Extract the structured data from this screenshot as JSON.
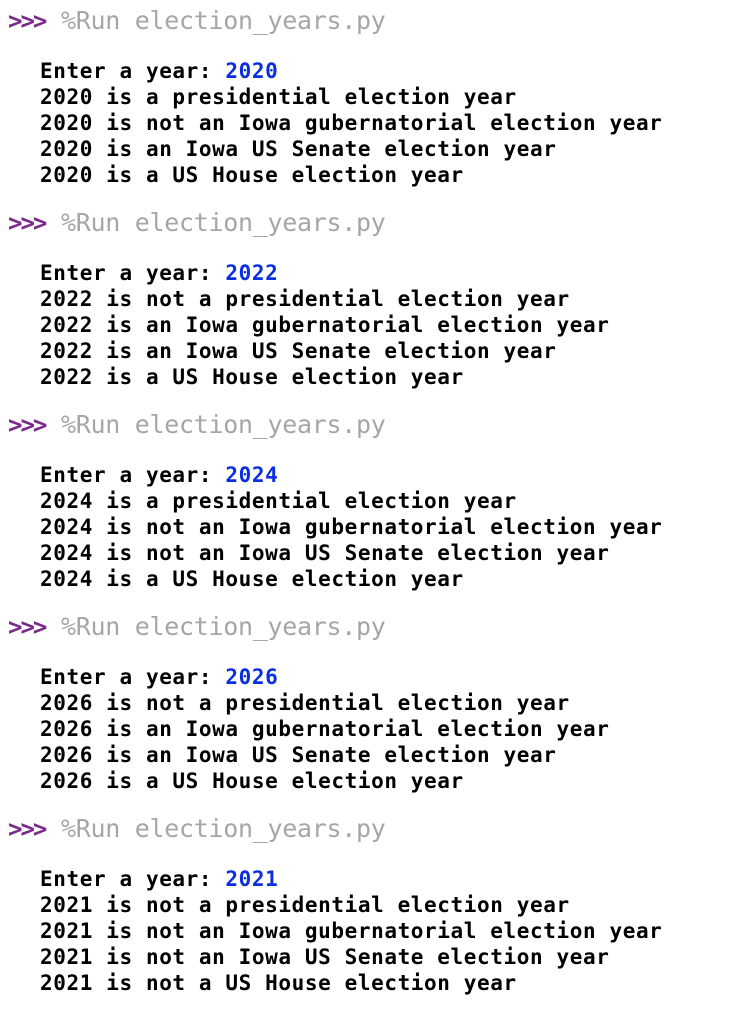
{
  "colors": {
    "prompt": "#7b2a8c",
    "command": "#a6a6a6",
    "input": "#0a2ee0",
    "output": "#000000",
    "background": "#ffffff"
  },
  "runs": [
    {
      "prompt": ">>>",
      "command": "%Run election_years.py",
      "input_label": "Enter a year: ",
      "input_value": "2020",
      "lines": [
        "2020 is a presidential election year",
        "2020 is not an Iowa gubernatorial election year",
        "2020 is an Iowa US Senate election year",
        "2020 is a US House election year"
      ]
    },
    {
      "prompt": ">>>",
      "command": "%Run election_years.py",
      "input_label": "Enter a year: ",
      "input_value": "2022",
      "lines": [
        "2022 is not a presidential election year",
        "2022 is an Iowa gubernatorial election year",
        "2022 is an Iowa US Senate election year",
        "2022 is a US House election year"
      ]
    },
    {
      "prompt": ">>>",
      "command": "%Run election_years.py",
      "input_label": "Enter a year: ",
      "input_value": "2024",
      "lines": [
        "2024 is a presidential election year",
        "2024 is not an Iowa gubernatorial election year",
        "2024 is not an Iowa US Senate election year",
        "2024 is a US House election year"
      ]
    },
    {
      "prompt": ">>>",
      "command": "%Run election_years.py",
      "input_label": "Enter a year: ",
      "input_value": "2026",
      "lines": [
        "2026 is not a presidential election year",
        "2026 is an Iowa gubernatorial election year",
        "2026 is an Iowa US Senate election year",
        "2026 is a US House election year"
      ]
    },
    {
      "prompt": ">>>",
      "command": "%Run election_years.py",
      "input_label": "Enter a year: ",
      "input_value": "2021",
      "lines": [
        "2021 is not a presidential election year",
        "2021 is not an Iowa gubernatorial election year",
        "2021 is not an Iowa US Senate election year",
        "2021 is not a US House election year"
      ]
    }
  ]
}
